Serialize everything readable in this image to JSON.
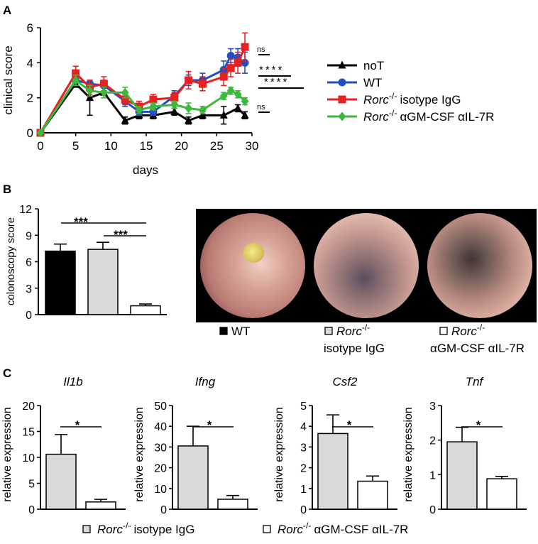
{
  "panel_labels": {
    "a": "A",
    "b": "B",
    "c": "C"
  },
  "chart_data": [
    {
      "type": "line",
      "panel": "A",
      "xlabel": "days",
      "ylabel": "clinical score",
      "xlim": [
        0,
        30
      ],
      "ylim": [
        0,
        6
      ],
      "xticks": [
        0,
        5,
        10,
        15,
        20,
        25,
        30
      ],
      "yticks": [
        0,
        2,
        4,
        6
      ],
      "series": [
        {
          "name": "noT",
          "prefix": "",
          "sup": "",
          "suffix": "noT",
          "color": "#000000",
          "marker": "triangle",
          "x": [
            0,
            5,
            7,
            9,
            12,
            14,
            16,
            19,
            21,
            23,
            26,
            28,
            29
          ],
          "y": [
            0,
            2.8,
            2.0,
            2.3,
            0.7,
            1.0,
            1.0,
            1.2,
            0.7,
            1.0,
            1.0,
            1.4,
            1.0
          ],
          "err": [
            0,
            0.2,
            1.0,
            0.3,
            0.2,
            0.2,
            0.2,
            0.2,
            0.2,
            0.2,
            0.5,
            0.2,
            0.2
          ]
        },
        {
          "name": "WT",
          "prefix": "",
          "sup": "",
          "suffix": "WT",
          "color": "#1f4fc0",
          "marker": "circle",
          "x": [
            0,
            5,
            7,
            9,
            12,
            14,
            16,
            19,
            21,
            23,
            26,
            27,
            28,
            29
          ],
          "y": [
            0,
            3.0,
            2.8,
            2.7,
            1.8,
            1.2,
            1.2,
            2.1,
            3.0,
            3.0,
            3.6,
            4.4,
            4.3,
            4.0
          ],
          "err": [
            0,
            0.3,
            0.2,
            0.3,
            0.3,
            0.2,
            0.2,
            0.3,
            0.3,
            0.4,
            0.5,
            0.4,
            0.5,
            0.6
          ]
        },
        {
          "name": "Rorc-/- isotype IgG",
          "prefix": "Rorc",
          "sup": "-/-",
          "suffix": "isotype IgG",
          "color": "#e82020",
          "marker": "square",
          "x": [
            0,
            5,
            7,
            9,
            12,
            14,
            16,
            19,
            21,
            23,
            26,
            27,
            28,
            29
          ],
          "y": [
            0,
            3.4,
            2.6,
            2.8,
            1.9,
            1.5,
            1.9,
            2.0,
            3.0,
            2.8,
            3.2,
            3.7,
            4.0,
            4.9
          ],
          "err": [
            0,
            0.4,
            0.4,
            0.4,
            0.3,
            0.3,
            0.3,
            0.3,
            0.5,
            0.4,
            0.5,
            0.5,
            0.6,
            0.8
          ]
        },
        {
          "name": "Rorc-/- aGM-CSF aIL-7R",
          "prefix": "Rorc",
          "sup": "-/-",
          "suffix": "αGM-CSF αIL-7R",
          "color": "#3cb83c",
          "marker": "diamond",
          "x": [
            0,
            5,
            7,
            9,
            12,
            14,
            16,
            19,
            21,
            23,
            26,
            27,
            28,
            29
          ],
          "y": [
            0,
            3.0,
            2.4,
            2.3,
            2.3,
            1.3,
            1.5,
            1.6,
            1.4,
            1.3,
            2.1,
            2.4,
            2.2,
            1.8
          ],
          "err": [
            0,
            0.3,
            0.3,
            0.3,
            0.3,
            0.2,
            0.2,
            0.2,
            0.3,
            0.2,
            0.2,
            0.2,
            0.2,
            0.2
          ]
        }
      ],
      "significance": [
        "ns",
        "****",
        "****",
        "ns"
      ]
    },
    {
      "type": "bar",
      "panel": "B",
      "ylabel": "colonoscopy score",
      "ylim": [
        0,
        12
      ],
      "yticks": [
        0,
        3,
        6,
        9,
        12
      ],
      "categories": [
        "WT",
        "Rorc-/- isotype IgG",
        "Rorc-/- aGM-CSF aIL-7R"
      ],
      "values": [
        7.2,
        7.4,
        1.0
      ],
      "errors": [
        0.8,
        0.8,
        0.2
      ],
      "colors": [
        "#000000",
        "#d9d9d9",
        "#ffffff"
      ],
      "significance": [
        "***",
        "***"
      ]
    },
    {
      "type": "bar",
      "panel": "C",
      "title": "Il1b",
      "ylabel": "relative expression",
      "ylim": [
        0,
        20
      ],
      "yticks": [
        0,
        5,
        10,
        15,
        20
      ],
      "categories": [
        "Rorc-/- isotype IgG",
        "Rorc-/- aGM-CSF aIL-7R"
      ],
      "values": [
        10.6,
        1.4
      ],
      "errors": [
        3.8,
        0.5
      ],
      "significance": "*"
    },
    {
      "type": "bar",
      "panel": "C",
      "title": "Ifng",
      "ylabel": "relative expression",
      "ylim": [
        0,
        50
      ],
      "yticks": [
        0,
        10,
        20,
        30,
        40,
        50
      ],
      "categories": [
        "Rorc-/- isotype IgG",
        "Rorc-/- aGM-CSF aIL-7R"
      ],
      "values": [
        30.5,
        4.8
      ],
      "errors": [
        9.5,
        1.8
      ],
      "significance": "*"
    },
    {
      "type": "bar",
      "panel": "C",
      "title": "Csf2",
      "ylabel": "relative expression",
      "ylim": [
        0,
        5
      ],
      "yticks": [
        0,
        1,
        2,
        3,
        4,
        5
      ],
      "categories": [
        "Rorc-/- isotype IgG",
        "Rorc-/- aGM-CSF aIL-7R"
      ],
      "values": [
        3.65,
        1.35
      ],
      "errors": [
        0.9,
        0.25
      ],
      "significance": "*"
    },
    {
      "type": "bar",
      "panel": "C",
      "title": "Tnf",
      "ylabel": "relative expression",
      "ylim": [
        0,
        3
      ],
      "yticks": [
        0,
        1,
        2,
        3
      ],
      "categories": [
        "Rorc-/- isotype IgG",
        "Rorc-/- aGM-CSF aIL-7R"
      ],
      "values": [
        1.95,
        0.88
      ],
      "errors": [
        0.42,
        0.07
      ],
      "significance": "*"
    }
  ],
  "panel_b_legend": [
    {
      "prefix": "WT",
      "sup": "",
      "suffix": "",
      "color": "#000000"
    },
    {
      "prefix": "Rorc",
      "sup": "-/-",
      "suffix": "isotype IgG",
      "color": "#d9d9d9"
    },
    {
      "prefix": "Rorc",
      "sup": "-/-",
      "suffix": "αGM-CSF αIL-7R",
      "color": "#ffffff"
    }
  ],
  "panel_c_legend": [
    {
      "prefix": "Rorc",
      "sup": "-/-",
      "suffix": "isotype IgG",
      "color": "#d9d9d9"
    },
    {
      "prefix": "Rorc",
      "sup": "-/-",
      "suffix": "αGM-CSF αIL-7R",
      "color": "#ffffff"
    }
  ]
}
